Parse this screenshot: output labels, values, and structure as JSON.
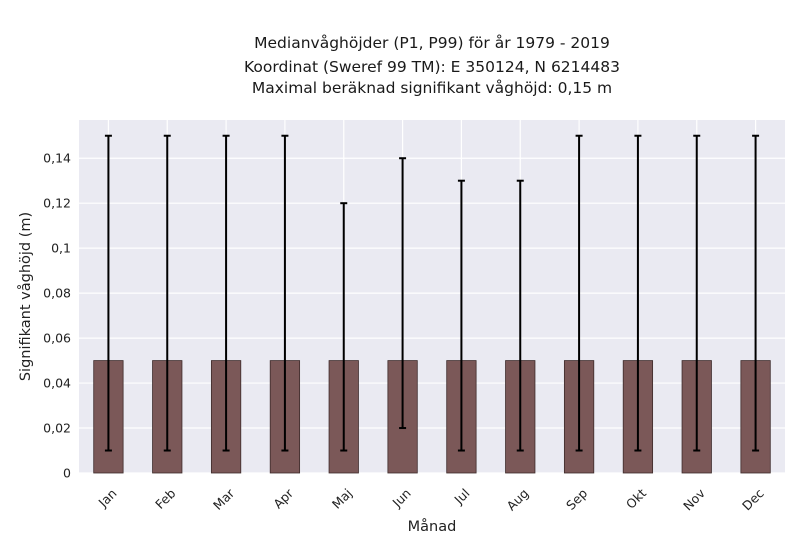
{
  "chart_data": {
    "type": "bar",
    "title_lines": [
      "Medianvåghöjder (P1, P99) för år 1979 - 2019",
      "Koordinat (Sweref 99 TM): E 350124, N 6214483",
      "Maximal beräknad signifikant våghöjd: 0,15 m"
    ],
    "xlabel": "Månad",
    "ylabel": "Signifikant våghöjd (m)",
    "categories": [
      "Jan",
      "Feb",
      "Mar",
      "Apr",
      "Maj",
      "Jun",
      "Jul",
      "Aug",
      "Sep",
      "Okt",
      "Nov",
      "Dec"
    ],
    "values": [
      0.05,
      0.05,
      0.05,
      0.05,
      0.05,
      0.05,
      0.05,
      0.05,
      0.05,
      0.05,
      0.05,
      0.05
    ],
    "p1": [
      0.01,
      0.01,
      0.01,
      0.01,
      0.01,
      0.02,
      0.01,
      0.01,
      0.01,
      0.01,
      0.01,
      0.01
    ],
    "p99": [
      0.15,
      0.15,
      0.15,
      0.15,
      0.12,
      0.14,
      0.13,
      0.13,
      0.15,
      0.15,
      0.15,
      0.15
    ],
    "ylim": [
      0,
      0.157
    ],
    "yticks": [
      0,
      0.02,
      0.04,
      0.06,
      0.08,
      0.1,
      0.12,
      0.14
    ],
    "ytick_labels": [
      "0",
      "0,02",
      "0,04",
      "0,06",
      "0,08",
      "0,1",
      "0,12",
      "0,14"
    ],
    "grid": true,
    "colors": {
      "bar": "#7b5858",
      "bar_edge": "#3d2a2a",
      "error_bar": "#000000",
      "plot_background": "#eaeaf2",
      "grid": "#ffffff"
    }
  }
}
